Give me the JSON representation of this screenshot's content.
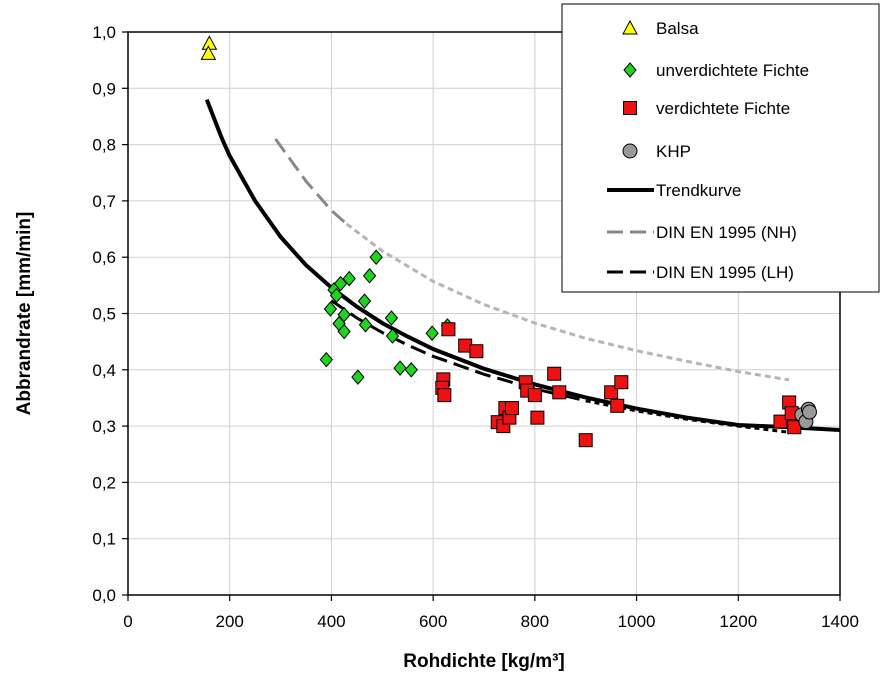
{
  "chart_data": {
    "type": "scatter",
    "xlabel": "Rohdichte [kg/m³]",
    "ylabel": "Abbrandrate [mm/min]",
    "xlim": [
      0,
      1400
    ],
    "ylim": [
      0,
      1.0
    ],
    "xticks": [
      0,
      200,
      400,
      600,
      800,
      1000,
      1200,
      1400
    ],
    "yticks": [
      0,
      0.1,
      0.2,
      0.3,
      0.4,
      0.5,
      0.6,
      0.7,
      0.8,
      0.9,
      1.0
    ],
    "x_tick_labels": [
      "0",
      "200",
      "400",
      "600",
      "800",
      "1000",
      "1200",
      "1400"
    ],
    "y_tick_labels": [
      "0,0",
      "0,1",
      "0,2",
      "0,3",
      "0,4",
      "0,5",
      "0,6",
      "0,7",
      "0,8",
      "0,9",
      "1,0"
    ],
    "grid": true,
    "legend_position": "top-right",
    "series": [
      {
        "name": "Balsa",
        "kind": "scatter",
        "marker": "triangle",
        "color": "#ffff00",
        "points": [
          [
            160,
            0.98
          ],
          [
            158,
            0.962
          ]
        ]
      },
      {
        "name": "unverdichtete Fichte",
        "kind": "scatter",
        "marker": "diamond",
        "color": "#1ed41e",
        "points": [
          [
            390,
            0.418
          ],
          [
            398,
            0.508
          ],
          [
            405,
            0.542
          ],
          [
            410,
            0.532
          ],
          [
            415,
            0.482
          ],
          [
            418,
            0.553
          ],
          [
            425,
            0.498
          ],
          [
            425,
            0.468
          ],
          [
            435,
            0.562
          ],
          [
            452,
            0.387
          ],
          [
            465,
            0.522
          ],
          [
            467,
            0.48
          ],
          [
            475,
            0.567
          ],
          [
            488,
            0.6
          ],
          [
            518,
            0.492
          ],
          [
            520,
            0.46
          ],
          [
            535,
            0.403
          ],
          [
            557,
            0.4
          ],
          [
            598,
            0.465
          ],
          [
            628,
            0.478
          ]
        ]
      },
      {
        "name": "verdichtete Fichte",
        "kind": "scatter",
        "marker": "square",
        "color": "#ee1111",
        "points": [
          [
            620,
            0.383
          ],
          [
            618,
            0.368
          ],
          [
            622,
            0.355
          ],
          [
            630,
            0.472
          ],
          [
            663,
            0.443
          ],
          [
            685,
            0.433
          ],
          [
            727,
            0.307
          ],
          [
            738,
            0.3
          ],
          [
            742,
            0.332
          ],
          [
            750,
            0.315
          ],
          [
            755,
            0.332
          ],
          [
            782,
            0.378
          ],
          [
            785,
            0.363
          ],
          [
            800,
            0.355
          ],
          [
            805,
            0.315
          ],
          [
            838,
            0.393
          ],
          [
            848,
            0.36
          ],
          [
            900,
            0.275
          ],
          [
            950,
            0.36
          ],
          [
            962,
            0.336
          ],
          [
            970,
            0.378
          ],
          [
            1283,
            0.308
          ],
          [
            1300,
            0.342
          ],
          [
            1305,
            0.323
          ],
          [
            1310,
            0.298
          ]
        ]
      },
      {
        "name": "KHP",
        "kind": "scatter",
        "marker": "circle",
        "color": "#999999",
        "points": [
          [
            1325,
            0.32
          ],
          [
            1333,
            0.308
          ],
          [
            1338,
            0.33
          ],
          [
            1340,
            0.325
          ]
        ]
      },
      {
        "name": "Trendkurve",
        "kind": "line",
        "color": "#000000",
        "points": [
          [
            155,
            0.88
          ],
          [
            185,
            0.81
          ],
          [
            200,
            0.78
          ],
          [
            250,
            0.7
          ],
          [
            300,
            0.636
          ],
          [
            350,
            0.586
          ],
          [
            400,
            0.546
          ],
          [
            450,
            0.512
          ],
          [
            500,
            0.483
          ],
          [
            550,
            0.459
          ],
          [
            600,
            0.437
          ],
          [
            700,
            0.402
          ],
          [
            800,
            0.374
          ],
          [
            900,
            0.351
          ],
          [
            1000,
            0.331
          ],
          [
            1100,
            0.315
          ],
          [
            1200,
            0.302
          ],
          [
            1300,
            0.298
          ],
          [
            1400,
            0.293
          ]
        ]
      },
      {
        "name": "DIN EN 1995 (NH)",
        "kind": "line",
        "color": "#888888",
        "points": [
          [
            290,
            0.81
          ],
          [
            350,
            0.735
          ],
          [
            400,
            0.683
          ],
          [
            430,
            0.659
          ],
          [
            500,
            0.611
          ],
          [
            600,
            0.557
          ],
          [
            700,
            0.516
          ],
          [
            800,
            0.483
          ],
          [
            900,
            0.456
          ],
          [
            1000,
            0.434
          ],
          [
            1100,
            0.415
          ],
          [
            1200,
            0.397
          ],
          [
            1300,
            0.382
          ]
        ]
      },
      {
        "name": "DIN EN 1995 (LH)",
        "kind": "line",
        "color": "#000000",
        "points": [
          [
            400,
            0.523
          ],
          [
            450,
            0.492
          ],
          [
            500,
            0.466
          ],
          [
            550,
            0.444
          ],
          [
            600,
            0.424
          ],
          [
            700,
            0.392
          ],
          [
            800,
            0.366
          ],
          [
            900,
            0.345
          ],
          [
            1000,
            0.327
          ],
          [
            1100,
            0.312
          ],
          [
            1200,
            0.3
          ],
          [
            1300,
            0.289
          ]
        ]
      }
    ]
  }
}
